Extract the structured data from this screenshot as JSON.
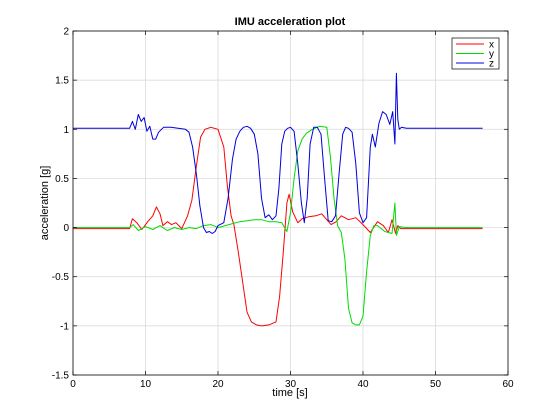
{
  "chart_data": {
    "type": "line",
    "title": "IMU acceleration plot",
    "xlabel": "time [s]",
    "ylabel": "acceleration [g]",
    "xlim": [
      0,
      60
    ],
    "ylim": [
      -1.5,
      2
    ],
    "xticks": [
      0,
      10,
      20,
      30,
      40,
      50,
      60
    ],
    "yticks": [
      -1.5,
      -1,
      -0.5,
      0,
      0.5,
      1,
      1.5,
      2
    ],
    "xtick_labels": [
      "0",
      "10",
      "20",
      "30",
      "40",
      "50",
      "60"
    ],
    "ytick_labels": [
      "-1.5",
      "-1",
      "-0.5",
      "0",
      "0.5",
      "1",
      "1.5",
      "2"
    ],
    "grid": true,
    "legend_position": "top-right",
    "series": [
      {
        "name": "x",
        "color": "#ff0000",
        "x": [
          0,
          7.8,
          8.2,
          8.8,
          9.5,
          10.3,
          11,
          11.5,
          12,
          12.4,
          13,
          13.6,
          14.2,
          15,
          15.8,
          16.4,
          17,
          17.6,
          18.2,
          19,
          20,
          20.8,
          21.3,
          21.8,
          22.2,
          22.8,
          23.4,
          24,
          24.6,
          25.3,
          26,
          27,
          28,
          28.5,
          29,
          29.5,
          29.8,
          30.3,
          31,
          31.6,
          32.5,
          33.5,
          34.3,
          35,
          35.6,
          36.3,
          37,
          38,
          39,
          40,
          41,
          42,
          42.8,
          43.5,
          44,
          44.5,
          44.8,
          45.2,
          46,
          50,
          56.5
        ],
        "y": [
          -0.01,
          -0.01,
          0.09,
          0.05,
          -0.02,
          0.06,
          0.12,
          0.21,
          0.14,
          0.02,
          0.06,
          0.03,
          0.05,
          -0.01,
          0.12,
          0.28,
          0.62,
          0.92,
          1.0,
          1.02,
          1.0,
          0.82,
          0.42,
          0.12,
          0.03,
          -0.25,
          -0.55,
          -0.86,
          -0.96,
          -0.99,
          -1.0,
          -0.99,
          -0.96,
          -0.7,
          -0.25,
          0.25,
          0.34,
          0.16,
          0.05,
          0.09,
          0.11,
          0.12,
          0.14,
          0.08,
          0.03,
          0.06,
          0.12,
          0.08,
          0.1,
          0.03,
          -0.05,
          0.06,
          0.02,
          -0.05,
          0.08,
          -0.06,
          0.02,
          -0.01,
          -0.01,
          -0.01,
          -0.01
        ]
      },
      {
        "name": "y",
        "color": "#00dd00",
        "x": [
          0,
          7.8,
          8.3,
          9,
          10,
          11,
          12,
          13,
          14,
          15,
          16,
          17,
          18,
          19,
          20,
          21,
          22,
          23,
          24,
          25,
          26,
          27,
          28,
          28.8,
          29.5,
          30,
          30.5,
          31,
          31.6,
          32.2,
          33,
          34,
          35,
          35.5,
          36,
          36.5,
          37,
          37.5,
          38,
          38.5,
          39,
          39.5,
          40,
          40.5,
          41,
          41.5,
          42,
          43,
          44,
          44.4,
          44.6,
          45,
          46,
          50,
          56.5
        ],
        "y": [
          0.0,
          0.0,
          0.03,
          -0.03,
          0.01,
          -0.02,
          0.02,
          -0.03,
          0.0,
          -0.02,
          0.0,
          -0.01,
          0.02,
          0.03,
          0.0,
          0.02,
          0.04,
          0.06,
          0.07,
          0.08,
          0.08,
          0.06,
          0.06,
          0.05,
          -0.04,
          0.15,
          0.5,
          0.78,
          0.9,
          0.96,
          1.0,
          1.03,
          1.02,
          0.72,
          0.3,
          0.02,
          -0.05,
          -0.32,
          -0.82,
          -0.97,
          -0.99,
          -0.99,
          -0.9,
          -0.45,
          -0.08,
          0.02,
          0.02,
          -0.04,
          -0.06,
          0.25,
          -0.08,
          0.01,
          0.0,
          0.0,
          0.0
        ]
      },
      {
        "name": "z",
        "color": "#0000dd",
        "x": [
          0,
          7.8,
          8.2,
          8.6,
          9,
          9.4,
          9.8,
          10.2,
          10.6,
          11,
          11.4,
          11.8,
          12.5,
          13.5,
          14.5,
          15.5,
          16,
          16.5,
          17,
          17.5,
          18,
          18.4,
          18.8,
          19.2,
          19.6,
          20,
          20.8,
          21.4,
          22,
          22.5,
          23,
          23.5,
          24,
          24.5,
          25,
          25.5,
          26,
          26.5,
          27,
          27.5,
          28,
          28.4,
          28.8,
          29.2,
          29.6,
          30,
          30.5,
          31,
          31.5,
          31.9,
          32.3,
          32.7,
          33.2,
          33.7,
          34.2,
          34.7,
          35.2,
          35.7,
          36.2,
          36.7,
          37.2,
          37.6,
          38,
          38.5,
          39,
          39.5,
          40,
          40.5,
          41,
          41.3,
          41.7,
          42.2,
          42.7,
          43.2,
          43.7,
          44.1,
          44.4,
          44.6,
          44.8,
          45,
          45.3,
          46,
          50,
          56.5
        ],
        "y": [
          1.01,
          1.01,
          1.08,
          1.0,
          1.15,
          1.08,
          1.12,
          0.98,
          1.03,
          0.9,
          0.9,
          0.97,
          1.02,
          1.02,
          1.01,
          1.0,
          0.97,
          0.82,
          0.55,
          0.22,
          0.0,
          -0.05,
          -0.04,
          -0.06,
          -0.04,
          0.02,
          0.05,
          0.3,
          0.7,
          0.9,
          0.98,
          1.02,
          1.03,
          1.01,
          0.95,
          0.75,
          0.3,
          0.1,
          0.13,
          0.08,
          0.12,
          0.4,
          0.85,
          0.98,
          1.01,
          1.02,
          0.98,
          0.65,
          0.25,
          0.05,
          0.3,
          0.85,
          1.02,
          1.02,
          0.95,
          0.5,
          0.07,
          0.06,
          0.12,
          0.55,
          0.95,
          1.02,
          1.01,
          0.97,
          0.65,
          0.15,
          0.05,
          0.1,
          0.82,
          0.95,
          0.82,
          1.06,
          1.18,
          1.15,
          1.05,
          1.18,
          0.85,
          1.57,
          1.1,
          1.0,
          1.02,
          1.01,
          1.01,
          1.01
        ]
      }
    ]
  }
}
